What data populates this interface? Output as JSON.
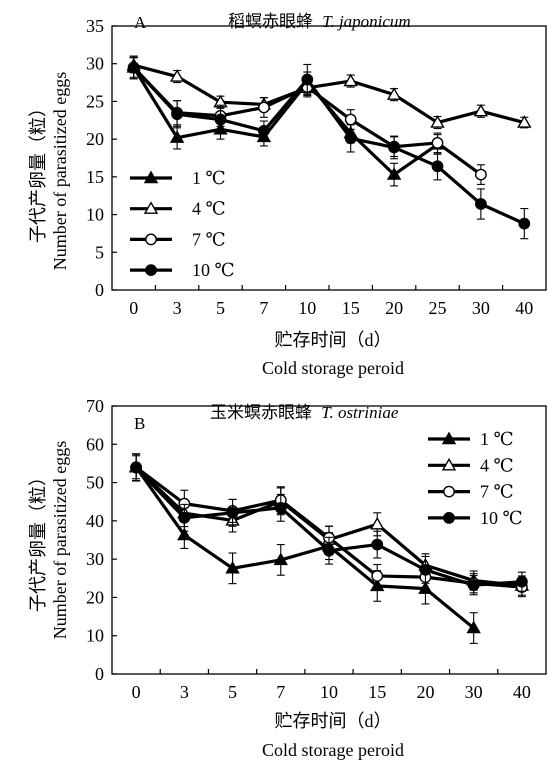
{
  "chart_data": [
    {
      "panel_label": "A",
      "type": "line",
      "title": "稻螟赤眼蜂",
      "title_species": "T. japonicum",
      "categories": [
        "0",
        "3",
        "5",
        "7",
        "10",
        "15",
        "20",
        "25",
        "30",
        "40"
      ],
      "ylabel_cn": "子代产卵量（粒）",
      "ylabel_en": "Number of parasitized eggs",
      "xlabel_cn": "贮存时间（d）",
      "xlabel_en": "Cold storage peroid",
      "ylim": [
        0,
        35
      ],
      "yticks": [
        0,
        5,
        10,
        15,
        20,
        25,
        30,
        35
      ],
      "legend_position": "left-middle",
      "grid": false,
      "series": [
        {
          "name": "1 ℃",
          "marker": "filled-triangle",
          "values": [
            29.5,
            20.2,
            21.3,
            20.3,
            27.5,
            20.8,
            15.3,
            19.3,
            null,
            null
          ],
          "errors": [
            1.5,
            1.5,
            1.3,
            1.2,
            1.4,
            1.3,
            1.5,
            1.3,
            null,
            null
          ]
        },
        {
          "name": "4 ℃",
          "marker": "open-triangle",
          "values": [
            29.8,
            28.3,
            24.9,
            24.6,
            26.8,
            27.7,
            25.9,
            22.2,
            23.7,
            22.2
          ],
          "errors": [
            1.0,
            0.8,
            0.8,
            0.9,
            1.0,
            0.8,
            0.8,
            0.8,
            0.8,
            0.7
          ]
        },
        {
          "name": "7 ℃",
          "marker": "open-circle",
          "values": [
            29.5,
            23.5,
            23.1,
            24.2,
            26.9,
            22.6,
            19.0,
            19.5,
            15.3,
            null
          ],
          "errors": [
            1.3,
            1.6,
            1.4,
            1.3,
            1.3,
            1.3,
            1.3,
            1.3,
            1.3,
            null
          ]
        },
        {
          "name": "10 ℃",
          "marker": "filled-circle",
          "values": [
            29.5,
            23.3,
            22.6,
            21.1,
            27.9,
            20.1,
            18.9,
            16.4,
            11.4,
            8.8
          ],
          "errors": [
            1.5,
            1.8,
            1.5,
            1.3,
            2.0,
            1.8,
            1.5,
            1.8,
            2.0,
            2.0
          ]
        }
      ]
    },
    {
      "panel_label": "B",
      "type": "line",
      "title": "玉米螟赤眼蜂",
      "title_species": "T. ostriniae",
      "categories": [
        "0",
        "3",
        "5",
        "7",
        "10",
        "15",
        "20",
        "30",
        "40"
      ],
      "ylabel_cn": "子代产卵量（粒）",
      "ylabel_en": "Number of parasitized eggs",
      "xlabel_cn": "贮存时间（d）",
      "xlabel_en": "Cold storage peroid",
      "ylim": [
        0,
        70
      ],
      "yticks": [
        0,
        10,
        20,
        30,
        40,
        50,
        60,
        70
      ],
      "legend_position": "top-right",
      "grid": false,
      "series": [
        {
          "name": "1 ℃",
          "marker": "filled-triangle",
          "values": [
            54.0,
            36.3,
            27.6,
            29.8,
            33.4,
            23.0,
            22.3,
            12.0,
            null
          ],
          "errors": [
            3.5,
            3.5,
            4.0,
            4.0,
            3.5,
            4.0,
            4.0,
            4.0,
            null
          ]
        },
        {
          "name": "4 ℃",
          "marker": "open-triangle",
          "values": [
            54.0,
            42.0,
            40.1,
            45.1,
            35.1,
            39.1,
            28.4,
            24.4,
            23.1
          ],
          "errors": [
            3.0,
            3.5,
            3.0,
            3.5,
            3.5,
            3.0,
            3.0,
            2.5,
            2.5
          ]
        },
        {
          "name": "7 ℃",
          "marker": "open-circle",
          "values": [
            54.0,
            44.5,
            42.6,
            45.4,
            35.6,
            25.6,
            25.3,
            23.7,
            22.7
          ],
          "errors": [
            3.5,
            3.5,
            3.0,
            3.5,
            3.0,
            3.0,
            3.0,
            2.5,
            2.5
          ]
        },
        {
          "name": "10 ℃",
          "marker": "filled-circle",
          "values": [
            53.9,
            40.8,
            42.1,
            43.4,
            32.2,
            33.8,
            27.2,
            23.2,
            24.1
          ],
          "errors": [
            3.5,
            3.5,
            3.5,
            3.5,
            3.5,
            3.5,
            3.5,
            2.5,
            2.5
          ]
        }
      ]
    }
  ]
}
